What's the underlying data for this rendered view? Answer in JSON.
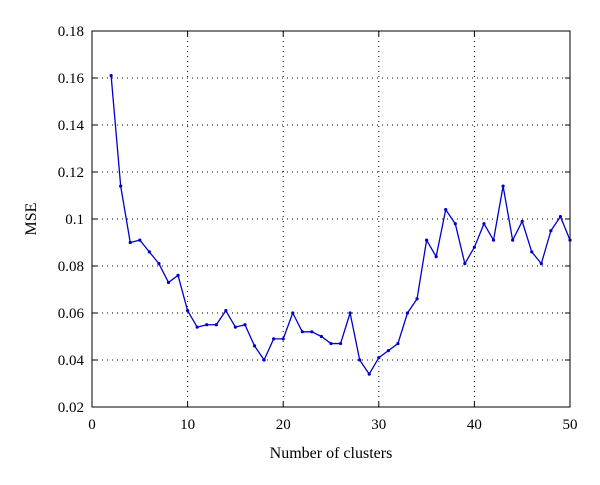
{
  "chart_data": {
    "type": "line",
    "title": "",
    "xlabel": "Number of clusters",
    "ylabel": "MSE",
    "xlim": [
      0,
      50
    ],
    "ylim": [
      0.02,
      0.18
    ],
    "xticks": [
      0,
      10,
      20,
      30,
      40,
      50
    ],
    "yticks": [
      0.02,
      0.04,
      0.06,
      0.08,
      0.1,
      0.12,
      0.14,
      0.16,
      0.18
    ],
    "xtick_labels": [
      "0",
      "10",
      "20",
      "30",
      "40",
      "50"
    ],
    "ytick_labels": [
      "0.02",
      "0.04",
      "0.06",
      "0.08",
      "0.1",
      "0.12",
      "0.14",
      "0.16",
      "0.18"
    ],
    "grid": true,
    "series": [
      {
        "color": "#0000cc",
        "x": [
          2,
          3,
          4,
          5,
          6,
          7,
          8,
          9,
          10,
          11,
          12,
          13,
          14,
          15,
          16,
          17,
          18,
          19,
          20,
          21,
          22,
          23,
          24,
          25,
          26,
          27,
          28,
          29,
          30,
          31,
          32,
          33,
          34,
          35,
          36,
          37,
          38,
          39,
          40,
          41,
          42,
          43,
          44,
          45,
          46,
          47,
          48,
          49,
          50
        ],
        "y": [
          0.161,
          0.114,
          0.09,
          0.091,
          0.086,
          0.081,
          0.073,
          0.076,
          0.061,
          0.054,
          0.055,
          0.055,
          0.061,
          0.054,
          0.055,
          0.046,
          0.04,
          0.049,
          0.049,
          0.06,
          0.052,
          0.052,
          0.05,
          0.047,
          0.047,
          0.06,
          0.04,
          0.034,
          0.041,
          0.044,
          0.047,
          0.06,
          0.066,
          0.091,
          0.084,
          0.104,
          0.098,
          0.081,
          0.088,
          0.098,
          0.091,
          0.114,
          0.091,
          0.099,
          0.086,
          0.081,
          0.095,
          0.101,
          0.091
        ]
      }
    ]
  }
}
